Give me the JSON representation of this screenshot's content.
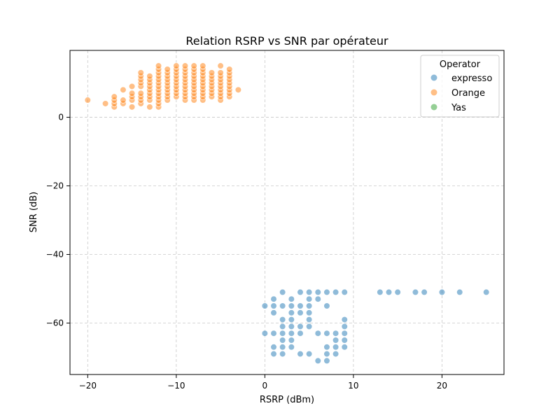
{
  "chart_data": {
    "type": "scatter",
    "title": "Relation RSRP vs SNR par opérateur",
    "xlabel": "RSRP (dBm)",
    "ylabel": "SNR (dB)",
    "xlim": [
      -22,
      27
    ],
    "ylim": [
      -75,
      19.5
    ],
    "xticks": [
      -20,
      -10,
      0,
      10,
      20
    ],
    "yticks": [
      0,
      -20,
      -40,
      -60
    ],
    "xtick_labels": [
      "−20",
      "−10",
      "0",
      "10",
      "20"
    ],
    "ytick_labels": [
      "0",
      "−20",
      "−40",
      "−60"
    ],
    "grid": true,
    "legend": {
      "title": "Operator",
      "position": "top-right"
    },
    "series": [
      {
        "name": "expresso",
        "color": "#1f77b4",
        "points": [
          [
            0,
            -55
          ],
          [
            0,
            -63
          ],
          [
            1,
            -53
          ],
          [
            1,
            -55
          ],
          [
            1,
            -57
          ],
          [
            1,
            -63
          ],
          [
            1,
            -67
          ],
          [
            1,
            -69
          ],
          [
            2,
            -51
          ],
          [
            2,
            -55
          ],
          [
            2,
            -59
          ],
          [
            2,
            -61
          ],
          [
            2,
            -63
          ],
          [
            2,
            -65
          ],
          [
            2,
            -67
          ],
          [
            2,
            -69
          ],
          [
            3,
            -53
          ],
          [
            3,
            -55
          ],
          [
            3,
            -57
          ],
          [
            3,
            -59
          ],
          [
            3,
            -61
          ],
          [
            3,
            -63
          ],
          [
            3,
            -65
          ],
          [
            3,
            -67
          ],
          [
            4,
            -51
          ],
          [
            4,
            -55
          ],
          [
            4,
            -57
          ],
          [
            4,
            -61
          ],
          [
            4,
            -63
          ],
          [
            4,
            -69
          ],
          [
            5,
            -51
          ],
          [
            5,
            -53
          ],
          [
            5,
            -55
          ],
          [
            5,
            -57
          ],
          [
            5,
            -59
          ],
          [
            5,
            -61
          ],
          [
            5,
            -69
          ],
          [
            6,
            -51
          ],
          [
            6,
            -53
          ],
          [
            6,
            -63
          ],
          [
            6,
            -71
          ],
          [
            7,
            -51
          ],
          [
            7,
            -55
          ],
          [
            7,
            -63
          ],
          [
            7,
            -67
          ],
          [
            7,
            -69
          ],
          [
            7,
            -71
          ],
          [
            8,
            -51
          ],
          [
            8,
            -63
          ],
          [
            8,
            -65
          ],
          [
            8,
            -67
          ],
          [
            8,
            -69
          ],
          [
            9,
            -51
          ],
          [
            9,
            -59
          ],
          [
            9,
            -61
          ],
          [
            9,
            -63
          ],
          [
            9,
            -65
          ],
          [
            9,
            -67
          ],
          [
            13,
            -51
          ],
          [
            14,
            -51
          ],
          [
            15,
            -51
          ],
          [
            17,
            -51
          ],
          [
            18,
            -51
          ],
          [
            20,
            -51
          ],
          [
            22,
            -51
          ],
          [
            25,
            -51
          ]
        ]
      },
      {
        "name": "Orange",
        "color": "#ff7f0e",
        "points": [
          [
            -20,
            5
          ],
          [
            -18,
            4
          ],
          [
            -17,
            3
          ],
          [
            -17,
            4
          ],
          [
            -17,
            5
          ],
          [
            -17,
            6
          ],
          [
            -16,
            4
          ],
          [
            -16,
            5
          ],
          [
            -16,
            8
          ],
          [
            -15,
            3
          ],
          [
            -15,
            5
          ],
          [
            -15,
            6
          ],
          [
            -15,
            7
          ],
          [
            -15,
            9
          ],
          [
            -14,
            4
          ],
          [
            -14,
            5
          ],
          [
            -14,
            6
          ],
          [
            -14,
            7
          ],
          [
            -14,
            9
          ],
          [
            -14,
            10
          ],
          [
            -14,
            11
          ],
          [
            -14,
            12
          ],
          [
            -14,
            13
          ],
          [
            -13,
            3
          ],
          [
            -13,
            5
          ],
          [
            -13,
            6
          ],
          [
            -13,
            7
          ],
          [
            -13,
            8
          ],
          [
            -13,
            9
          ],
          [
            -13,
            10
          ],
          [
            -13,
            11
          ],
          [
            -13,
            12
          ],
          [
            -12,
            3
          ],
          [
            -12,
            4
          ],
          [
            -12,
            5
          ],
          [
            -12,
            6
          ],
          [
            -12,
            7
          ],
          [
            -12,
            8
          ],
          [
            -12,
            9
          ],
          [
            -12,
            10
          ],
          [
            -12,
            11
          ],
          [
            -12,
            12
          ],
          [
            -12,
            13
          ],
          [
            -12,
            14
          ],
          [
            -12,
            15
          ],
          [
            -11,
            5
          ],
          [
            -11,
            6
          ],
          [
            -11,
            7
          ],
          [
            -11,
            8
          ],
          [
            -11,
            9
          ],
          [
            -11,
            10
          ],
          [
            -11,
            11
          ],
          [
            -11,
            12
          ],
          [
            -11,
            13
          ],
          [
            -11,
            14
          ],
          [
            -10,
            6
          ],
          [
            -10,
            7
          ],
          [
            -10,
            8
          ],
          [
            -10,
            9
          ],
          [
            -10,
            10
          ],
          [
            -10,
            11
          ],
          [
            -10,
            12
          ],
          [
            -10,
            13
          ],
          [
            -10,
            14
          ],
          [
            -10,
            15
          ],
          [
            -9,
            5
          ],
          [
            -9,
            6
          ],
          [
            -9,
            7
          ],
          [
            -9,
            8
          ],
          [
            -9,
            9
          ],
          [
            -9,
            10
          ],
          [
            -9,
            11
          ],
          [
            -9,
            12
          ],
          [
            -9,
            13
          ],
          [
            -9,
            14
          ],
          [
            -9,
            15
          ],
          [
            -8,
            5
          ],
          [
            -8,
            6
          ],
          [
            -8,
            7
          ],
          [
            -8,
            8
          ],
          [
            -8,
            9
          ],
          [
            -8,
            10
          ],
          [
            -8,
            11
          ],
          [
            -8,
            12
          ],
          [
            -8,
            13
          ],
          [
            -8,
            14
          ],
          [
            -8,
            15
          ],
          [
            -7,
            5
          ],
          [
            -7,
            6
          ],
          [
            -7,
            7
          ],
          [
            -7,
            8
          ],
          [
            -7,
            9
          ],
          [
            -7,
            10
          ],
          [
            -7,
            11
          ],
          [
            -7,
            12
          ],
          [
            -7,
            13
          ],
          [
            -7,
            14
          ],
          [
            -7,
            15
          ],
          [
            -6,
            6
          ],
          [
            -6,
            7
          ],
          [
            -6,
            8
          ],
          [
            -6,
            9
          ],
          [
            -6,
            10
          ],
          [
            -6,
            11
          ],
          [
            -6,
            12
          ],
          [
            -6,
            13
          ],
          [
            -5,
            5
          ],
          [
            -5,
            6
          ],
          [
            -5,
            7
          ],
          [
            -5,
            8
          ],
          [
            -5,
            9
          ],
          [
            -5,
            10
          ],
          [
            -5,
            11
          ],
          [
            -5,
            12
          ],
          [
            -5,
            13
          ],
          [
            -5,
            15
          ],
          [
            -4,
            6
          ],
          [
            -4,
            7
          ],
          [
            -4,
            8
          ],
          [
            -4,
            9
          ],
          [
            -4,
            10
          ],
          [
            -4,
            11
          ],
          [
            -4,
            12
          ],
          [
            -4,
            13
          ],
          [
            -4,
            14
          ],
          [
            -3,
            8
          ]
        ]
      },
      {
        "name": "Yas",
        "color": "#2ca02c",
        "points": []
      }
    ]
  }
}
